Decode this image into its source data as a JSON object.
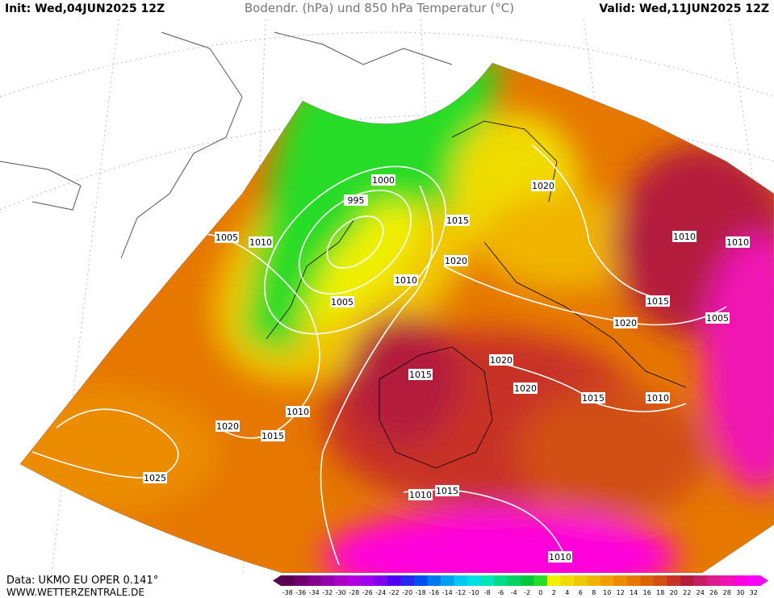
{
  "header": {
    "init": "Init: Wed,04JUN2025 12Z",
    "title": "Bodendr. (hPa) und 850 hPa Temperatur (°C)",
    "valid": "Valid: Wed,11JUN2025 12Z"
  },
  "footer": {
    "data": "Data: UKMO EU OPER 0.141°",
    "site": "WWW.WETTERZENTRALE.DE"
  },
  "legend": {
    "labels": [
      -38,
      -36,
      -34,
      -32,
      -30,
      -28,
      -26,
      -24,
      -22,
      -20,
      -18,
      -16,
      -14,
      -12,
      -10,
      -8,
      -6,
      -4,
      -2,
      0,
      2,
      4,
      6,
      8,
      10,
      12,
      14,
      16,
      18,
      20,
      22,
      24,
      26,
      28,
      30,
      32
    ],
    "colors": [
      "#5a0050",
      "#6e0070",
      "#82008c",
      "#9600a8",
      "#aa00c8",
      "#b400e0",
      "#a000f0",
      "#8200f0",
      "#5000f0",
      "#2828f0",
      "#0050f0",
      "#0078f0",
      "#00a0f0",
      "#00c8f0",
      "#00e0e0",
      "#00e6b4",
      "#00dc8c",
      "#00d264",
      "#00c83c",
      "#28dc28",
      "#f0f000",
      "#f0dc00",
      "#f0c800",
      "#f0b400",
      "#f0a000",
      "#eb8c00",
      "#e67800",
      "#dc6400",
      "#d25014",
      "#c83228",
      "#b41e3c",
      "#c81e64",
      "#dc1e8c",
      "#f014b4",
      "#ff00dc",
      "#ff00ff"
    ]
  },
  "isobar_labels": [
    "1005",
    "1010",
    "1000",
    "995",
    "1005",
    "1010",
    "1015",
    "1020",
    "1020",
    "1010",
    "1010",
    "1015",
    "1005",
    "1020",
    "1020",
    "1015",
    "1020",
    "1015",
    "1010",
    "1010",
    "1020",
    "1015",
    "1025",
    "1010",
    "1015",
    "1010"
  ]
}
